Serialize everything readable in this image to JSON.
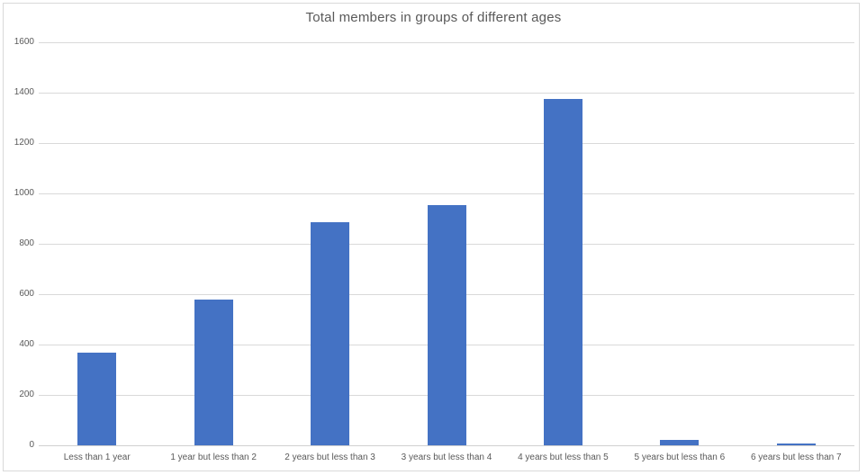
{
  "chart": {
    "colors": {
      "bar": "#4472C4",
      "gridline": "#D9D9D9",
      "axis_line": "#D0D0D0",
      "text": "#595959",
      "frame_border": "#D9D9D9",
      "background": "#FFFFFF"
    }
  },
  "chart_data": {
    "type": "bar",
    "title": "Total members in groups of different ages",
    "categories": [
      "Less than 1 year",
      "1 year but less than 2",
      "2 years but less than 3",
      "3 years but less than 4",
      "4 years but less than 5",
      "5 years but less than 6",
      "6 years but less than 7"
    ],
    "values": [
      368,
      580,
      885,
      955,
      1375,
      21,
      7
    ],
    "xlabel": "",
    "ylabel": "",
    "ylim": [
      0,
      1600
    ],
    "yticks": [
      0,
      200,
      400,
      600,
      800,
      1000,
      1200,
      1400,
      1600
    ],
    "grid": true,
    "legend": false,
    "legend_position": "none"
  }
}
